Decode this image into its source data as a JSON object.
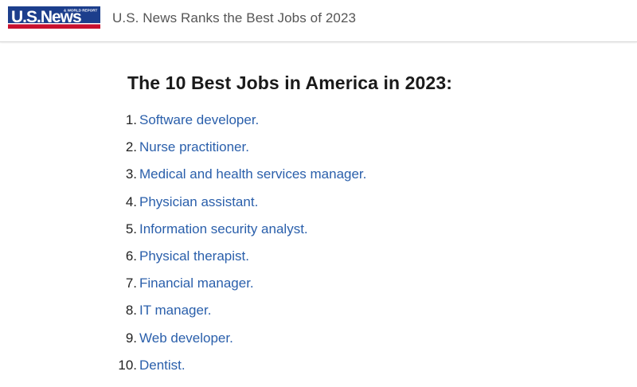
{
  "header": {
    "brand": "U.S.News",
    "brand_sub": "& WORLD REPORT",
    "title": "U.S. News Ranks the Best Jobs of 2023"
  },
  "article": {
    "heading": "The 10 Best Jobs in America in 2023:",
    "jobs": [
      {
        "rank": "1.",
        "title": "Software developer",
        "suffix": "."
      },
      {
        "rank": "2.",
        "title": "Nurse practitioner",
        "suffix": "."
      },
      {
        "rank": "3.",
        "title": "Medical and health services manager",
        "suffix": "."
      },
      {
        "rank": "4.",
        "title": "Physician assistant",
        "suffix": "."
      },
      {
        "rank": "5.",
        "title": "Information security analyst",
        "suffix": "."
      },
      {
        "rank": "6.",
        "title": "Physical therapist",
        "suffix": "."
      },
      {
        "rank": "7.",
        "title": "Financial manager",
        "suffix": "."
      },
      {
        "rank": "8.",
        "title": "IT manager",
        "suffix": "."
      },
      {
        "rank": "9.",
        "title": "Web developer",
        "suffix": "."
      },
      {
        "rank": "10.",
        "title": "Dentist",
        "suffix": "."
      }
    ]
  },
  "colors": {
    "brand_blue": "#1c3e8c",
    "brand_red": "#c8102e",
    "link": "#2a5fab"
  }
}
